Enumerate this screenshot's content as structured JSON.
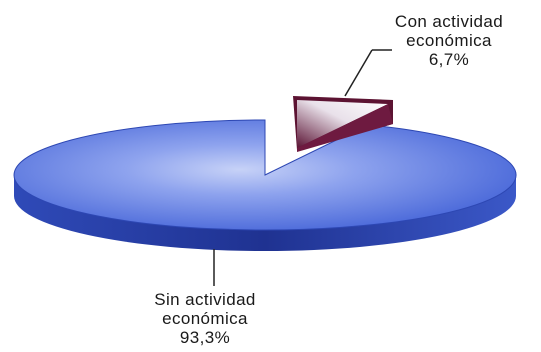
{
  "chart_data": {
    "type": "pie",
    "title": "",
    "slices": [
      {
        "label_line1": "Sin actividad",
        "label_line2": "económica",
        "value_text": "93,3%",
        "value": 93.3
      },
      {
        "label_line1": "Con actividad",
        "label_line2": "económica",
        "value_text": "6,7%",
        "value": 6.7
      }
    ],
    "colors": {
      "main_top": "#5b78e0",
      "main_side": "#233a99",
      "exploded_top": "#7a1e4a",
      "exploded_highlight": "#f2eef2"
    },
    "legend": "none",
    "style": "3d-exploded"
  }
}
